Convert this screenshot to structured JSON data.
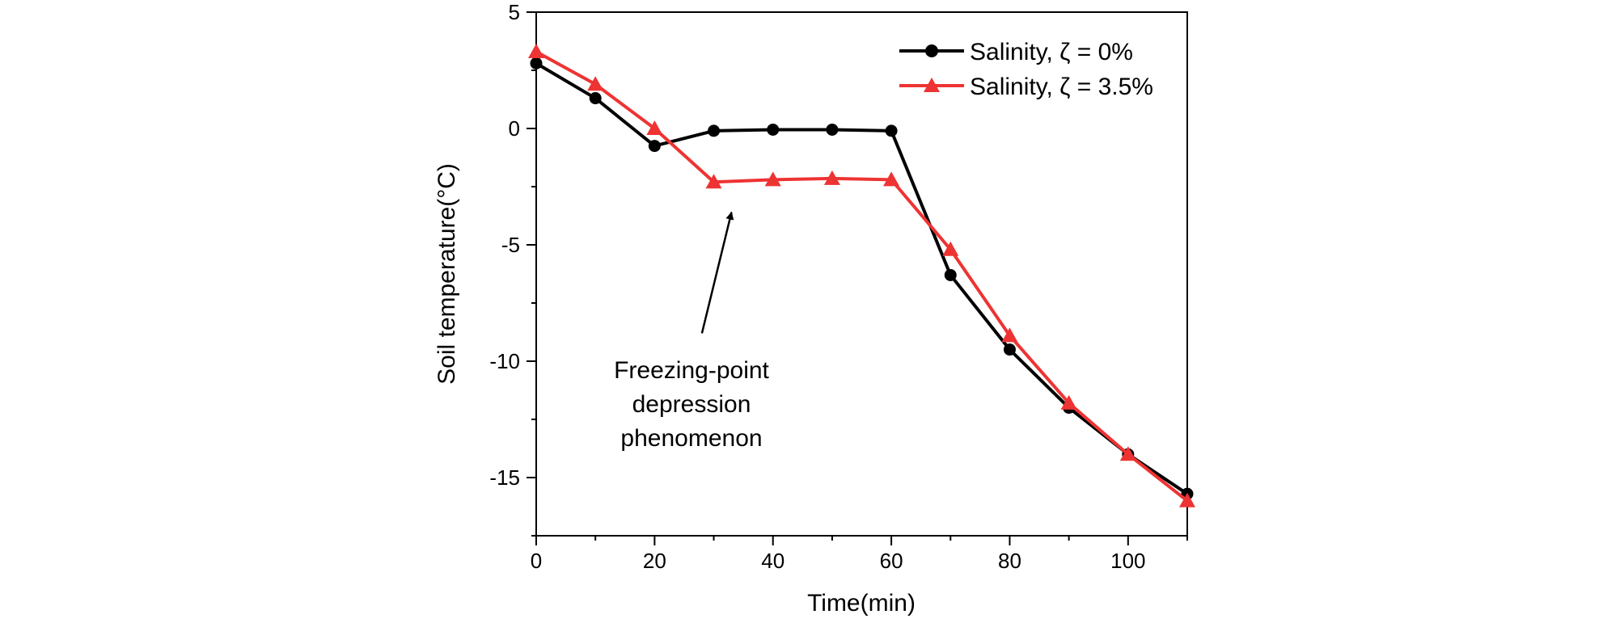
{
  "chart_data": {
    "type": "line",
    "title": "",
    "xlabel": "Time(min)",
    "ylabel": "Soil temperature(°C)",
    "xlim": [
      0,
      110
    ],
    "ylim": [
      -17.5,
      5
    ],
    "xticks": [
      0,
      20,
      40,
      60,
      80,
      100
    ],
    "yticks": [
      5,
      0,
      -5,
      -10,
      -15
    ],
    "x": [
      0,
      10,
      20,
      30,
      40,
      50,
      60,
      70,
      80,
      90,
      100,
      110
    ],
    "series": [
      {
        "name": "Salinity, ζ = 0%",
        "color": "#000000",
        "marker": "circle",
        "values": [
          2.8,
          1.3,
          -0.75,
          -0.1,
          -0.05,
          -0.05,
          -0.1,
          -6.3,
          -9.5,
          -12.0,
          -14.0,
          -15.7
        ]
      },
      {
        "name": "Salinity, ζ = 3.5%",
        "color": "#ee3333",
        "marker": "triangle",
        "values": [
          3.3,
          1.9,
          0.0,
          -2.3,
          -2.2,
          -2.15,
          -2.2,
          -5.2,
          -8.9,
          -11.8,
          -14.0,
          -16.0
        ]
      }
    ],
    "legend_position": "top-right",
    "annotation": {
      "lines": [
        "Freezing-point",
        "depression",
        "phenomenon"
      ],
      "arrow_target": {
        "x": 33,
        "y": -3.6
      },
      "arrow_tail": {
        "x": 28,
        "y": -8.8
      }
    },
    "grid": false
  }
}
